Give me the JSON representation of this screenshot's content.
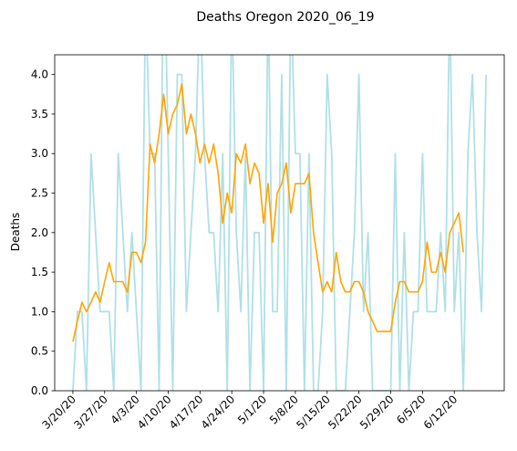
{
  "chart_data": {
    "type": "line",
    "title": "Deaths Oregon 2020_06_19",
    "xlabel": "",
    "ylabel": "Deaths",
    "ylim": [
      0,
      4.25
    ],
    "yticks": [
      0.0,
      0.5,
      1.0,
      1.5,
      2.0,
      2.5,
      3.0,
      3.5,
      4.0
    ],
    "ytick_labels": [
      "0.0",
      "0.5",
      "1.0",
      "1.5",
      "2.0",
      "2.5",
      "3.0",
      "3.5",
      "4.0"
    ],
    "xtick_labels": [
      "3/20/20",
      "3/27/20",
      "4/3/20",
      "4/10/20",
      "4/17/20",
      "4/24/20",
      "5/1/20",
      "5/8/20",
      "5/15/20",
      "5/22/20",
      "5/29/20",
      "6/5/20",
      "6/12/20"
    ],
    "x_start": "3/20/20",
    "x_interval_days": 1,
    "grid": false,
    "legend": "none",
    "series": [
      {
        "color": "#b0e0e6",
        "values": [
          0,
          1,
          1,
          0,
          3,
          2,
          1,
          1,
          1,
          0,
          3,
          2,
          1,
          2,
          1,
          0,
          5,
          3,
          3,
          0,
          6,
          3,
          0,
          4,
          4,
          1,
          2,
          3,
          5,
          3,
          2,
          2,
          1,
          3,
          0,
          5,
          2,
          1,
          3,
          0,
          2,
          2,
          0,
          5,
          1,
          1,
          4,
          0,
          5,
          3,
          3,
          0,
          3,
          0,
          0,
          1,
          4,
          3,
          0,
          0,
          0,
          1,
          2,
          4,
          1,
          2,
          0,
          0,
          0,
          0,
          0,
          3,
          0,
          2,
          0,
          1,
          1,
          3,
          1,
          1,
          1,
          2,
          1,
          5,
          1,
          2,
          0,
          3,
          4,
          2,
          1,
          4
        ]
      },
      {
        "color": "#ffa500",
        "values": [
          0.62,
          0.88,
          1.12,
          1.0,
          1.12,
          1.25,
          1.12,
          1.38,
          1.62,
          1.38,
          1.38,
          1.38,
          1.25,
          1.75,
          1.75,
          1.62,
          1.88,
          3.12,
          2.88,
          3.25,
          3.75,
          3.25,
          3.5,
          3.62,
          3.88,
          3.25,
          3.5,
          3.25,
          2.88,
          3.12,
          2.88,
          3.12,
          2.75,
          2.12,
          2.5,
          2.25,
          3.0,
          2.88,
          3.12,
          2.62,
          2.88,
          2.75,
          2.12,
          2.62,
          1.88,
          2.5,
          2.62,
          2.88,
          2.25,
          2.62,
          2.62,
          2.62,
          2.75,
          2.0,
          1.62,
          1.25,
          1.38,
          1.25,
          1.75,
          1.38,
          1.25,
          1.25,
          1.38,
          1.38,
          1.25,
          1.0,
          0.88,
          0.75,
          0.75,
          0.75,
          0.75,
          1.12,
          1.38,
          1.38,
          1.25,
          1.25,
          1.25,
          1.38,
          1.88,
          1.5,
          1.5,
          1.75,
          1.5,
          2.0,
          2.12,
          2.25,
          1.75
        ]
      }
    ]
  }
}
